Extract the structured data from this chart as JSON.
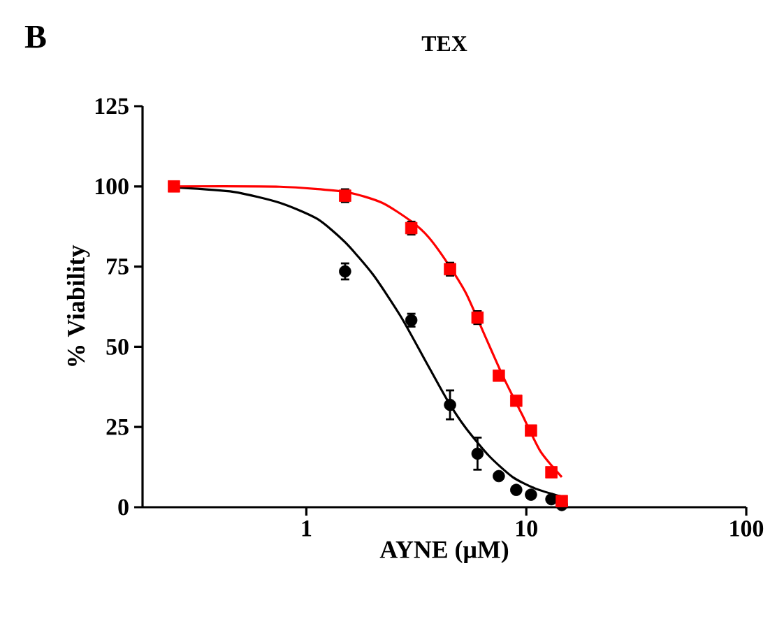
{
  "chart_data": {
    "type": "scatter",
    "title": "TEX",
    "xlabel": "AYNE (μM)",
    "ylabel": "% Viability",
    "annotations": [
      "B"
    ],
    "log": "x",
    "xlim": [
      0.18,
      100
    ],
    "xticks": [
      1,
      10,
      100
    ],
    "ylim": [
      0,
      125
    ],
    "yticks": [
      0,
      25,
      50,
      75,
      100,
      125
    ],
    "grid": false,
    "series": [
      {
        "type": "line",
        "color": "#000000",
        "marker": "none",
        "x": [
          0.253,
          0.466,
          0.757,
          1.12,
          1.5,
          2.01,
          2.69,
          3.43,
          4.38,
          5.32,
          6.79,
          8.67,
          11.0,
          14.5
        ],
        "values": [
          99.7,
          98.3,
          94.9,
          89.9,
          82.6,
          72.5,
          59.4,
          46.4,
          33.3,
          24.6,
          15.9,
          9.4,
          5.8,
          3.3
        ]
      },
      {
        "type": "line",
        "color": "#ff0000",
        "marker": "none",
        "x": [
          0.253,
          0.757,
          1.5,
          2.21,
          3.0,
          3.6,
          4.38,
          5.32,
          6.47,
          7.86,
          9.55,
          11.6,
          14.5
        ],
        "values": [
          100,
          99.9,
          98.3,
          94.9,
          89.1,
          84.1,
          76.1,
          66.7,
          53.6,
          40.6,
          29.0,
          17.4,
          9.4
        ]
      },
      {
        "color": "#000000",
        "marker": "circle",
        "x": [
          1.5,
          3.0,
          4.5,
          6.0,
          7.5,
          9.0,
          10.5,
          13.0,
          14.5
        ],
        "values": [
          73.5,
          58.3,
          31.9,
          16.7,
          9.7,
          5.4,
          3.9,
          2.5,
          0.7
        ],
        "errors": [
          2.5,
          2,
          4.5,
          5,
          null,
          null,
          null,
          null,
          null
        ]
      },
      {
        "color": "#ff0000",
        "marker": "square",
        "x": [
          0.25,
          1.5,
          3.0,
          4.5,
          6.0,
          7.5,
          9.0,
          10.5,
          13.0,
          14.5
        ],
        "values": [
          100,
          97.1,
          87,
          74.2,
          59.1,
          41,
          33.2,
          23.9,
          10.9,
          1.9
        ],
        "errors": [
          null,
          2,
          2,
          2,
          2,
          null,
          null,
          null,
          null,
          null
        ]
      }
    ]
  }
}
